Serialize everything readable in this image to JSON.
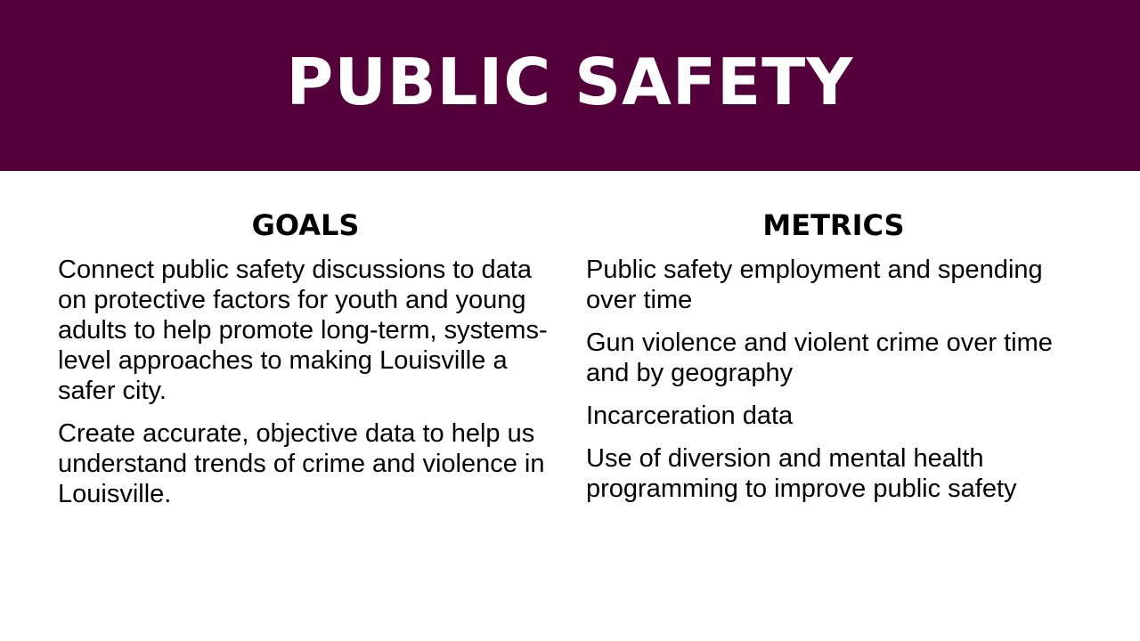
{
  "slide": {
    "title": "PUBLIC SAFETY",
    "colors": {
      "banner": "#54003a",
      "title_text": "#ffffff",
      "body_text": "#000000",
      "background": "#ffffff"
    }
  },
  "goals": {
    "heading": "GOALS",
    "items": [
      "Connect public safety discussions to data on protective factors for youth and young adults to help promote long-term, systems-level approaches to making Louisville a safer city.",
      "Create accurate, objective data to help us understand trends of crime and violence in Louisville."
    ]
  },
  "metrics": {
    "heading": "METRICS",
    "items": [
      "Public safety employment and spending over time",
      "Gun violence and violent crime over time and by geography",
      "Incarceration data",
      "Use of diversion and mental health programming to improve public safety"
    ]
  }
}
